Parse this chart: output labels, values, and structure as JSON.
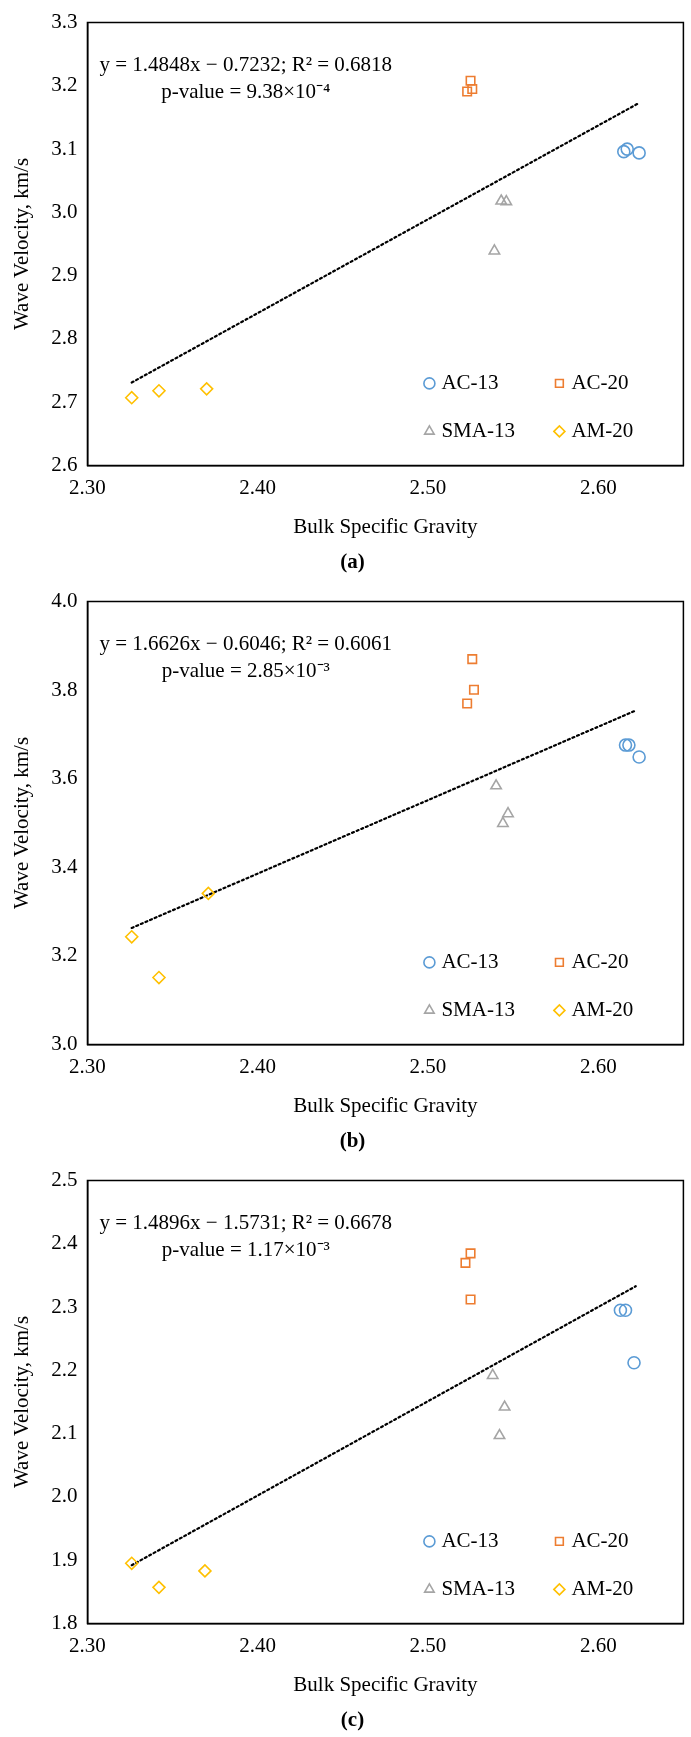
{
  "chart_data": [
    {
      "type": "scatter",
      "title": "(a)",
      "xlabel": "Bulk Specific Gravity",
      "ylabel": "Wave Velocity, km/s",
      "annotations": [
        "y = 1.4848x − 0.7232; R² = 0.6818",
        "p-value = 9.38×10⁻⁴"
      ],
      "xlim": [
        2.3,
        2.65
      ],
      "xticks": [
        {
          "value": 2.3,
          "label": "2.30"
        },
        {
          "value": 2.4,
          "label": "2.40"
        },
        {
          "value": 2.5,
          "label": "2.50"
        },
        {
          "value": 2.6,
          "label": "2.60"
        }
      ],
      "ylim": [
        2.6,
        3.3
      ],
      "yticks": [
        {
          "value": 2.6,
          "label": "2.6"
        },
        {
          "value": 2.7,
          "label": "2.7"
        },
        {
          "value": 2.8,
          "label": "2.8"
        },
        {
          "value": 2.9,
          "label": "2.9"
        },
        {
          "value": 3,
          "label": "3.0"
        },
        {
          "value": 3.1,
          "label": "3.1"
        },
        {
          "value": 3.2,
          "label": "3.2"
        },
        {
          "value": 3.3,
          "label": "3.3"
        }
      ],
      "grid": false,
      "legend": "bottom right",
      "series": [
        {
          "name": "AC-13",
          "color": "#5b9bd5",
          "marker": "circle",
          "x": [
            2.615,
            2.617,
            2.624
          ],
          "values": [
            3.096,
            3.1,
            3.094
          ]
        },
        {
          "name": "AC-20",
          "color": "#ed7d31",
          "marker": "square",
          "x": [
            2.523,
            2.525,
            2.526
          ],
          "values": [
            3.191,
            3.208,
            3.195
          ]
        },
        {
          "name": "SMA-13",
          "color": "#a5a5a5",
          "marker": "triangle",
          "x": [
            2.543,
            2.546,
            2.539
          ],
          "values": [
            3.018,
            3.017,
            2.939
          ]
        },
        {
          "name": "AM-20",
          "color": "#ffc000",
          "marker": "diamond",
          "x": [
            2.326,
            2.342,
            2.37
          ],
          "values": [
            2.707,
            2.718,
            2.721
          ]
        },
        {
          "type": "line",
          "color": "#000000",
          "marker": "none",
          "line_style": "dotted",
          "x": [
            2.326,
            2.624
          ],
          "values": [
            2.731,
            3.173
          ]
        }
      ]
    },
    {
      "type": "scatter",
      "title": "(b)",
      "xlabel": "Bulk Specific Gravity",
      "ylabel": "Wave Velocity, km/s",
      "annotations": [
        "y = 1.6626x − 0.6046; R² = 0.6061",
        "p-value = 2.85×10⁻³"
      ],
      "xlim": [
        2.3,
        2.65
      ],
      "xticks": [
        {
          "value": 2.3,
          "label": "2.30"
        },
        {
          "value": 2.4,
          "label": "2.40"
        },
        {
          "value": 2.5,
          "label": "2.50"
        },
        {
          "value": 2.6,
          "label": "2.60"
        }
      ],
      "ylim": [
        3,
        4
      ],
      "yticks": [
        {
          "value": 3,
          "label": "3.0"
        },
        {
          "value": 3.2,
          "label": "3.2"
        },
        {
          "value": 3.4,
          "label": "3.4"
        },
        {
          "value": 3.6,
          "label": "3.6"
        },
        {
          "value": 3.8,
          "label": "3.8"
        },
        {
          "value": 4,
          "label": "4.0"
        }
      ],
      "grid": false,
      "legend": "bottom right",
      "series": [
        {
          "name": "AC-13",
          "color": "#5b9bd5",
          "marker": "circle",
          "x": [
            2.616,
            2.618,
            2.624
          ],
          "values": [
            3.676,
            3.676,
            3.649
          ]
        },
        {
          "name": "AC-20",
          "color": "#ed7d31",
          "marker": "square",
          "x": [
            2.526,
            2.527,
            2.523
          ],
          "values": [
            3.87,
            3.801,
            3.77
          ]
        },
        {
          "name": "SMA-13",
          "color": "#a5a5a5",
          "marker": "triangle",
          "x": [
            2.54,
            2.547,
            2.544
          ],
          "values": [
            3.584,
            3.521,
            3.499
          ]
        },
        {
          "name": "AM-20",
          "color": "#ffc000",
          "marker": "diamond",
          "x": [
            2.326,
            2.342,
            2.371
          ],
          "values": [
            3.243,
            3.151,
            3.341
          ]
        },
        {
          "type": "line",
          "color": "#000000",
          "marker": "none",
          "line_style": "dotted",
          "x": [
            2.326,
            2.622
          ],
          "values": [
            3.263,
            3.754
          ]
        }
      ]
    },
    {
      "type": "scatter",
      "title": "(c)",
      "xlabel": "Bulk Specific Gravity",
      "ylabel": "Wave Velocity, km/s",
      "annotations": [
        "y = 1.4896x − 1.5731; R² = 0.6678",
        "p-value = 1.17×10⁻³"
      ],
      "xlim": [
        2.3,
        2.65
      ],
      "xticks": [
        {
          "value": 2.3,
          "label": "2.30"
        },
        {
          "value": 2.4,
          "label": "2.40"
        },
        {
          "value": 2.5,
          "label": "2.50"
        },
        {
          "value": 2.6,
          "label": "2.60"
        }
      ],
      "ylim": [
        1.8,
        2.5
      ],
      "yticks": [
        {
          "value": 1.8,
          "label": "1.8"
        },
        {
          "value": 1.9,
          "label": "1.9"
        },
        {
          "value": 2,
          "label": "2.0"
        },
        {
          "value": 2.1,
          "label": "2.1"
        },
        {
          "value": 2.2,
          "label": "2.2"
        },
        {
          "value": 2.3,
          "label": "2.3"
        },
        {
          "value": 2.4,
          "label": "2.4"
        },
        {
          "value": 2.5,
          "label": "2.5"
        }
      ],
      "grid": false,
      "legend": "bottom right",
      "series": [
        {
          "name": "AC-13",
          "color": "#5b9bd5",
          "marker": "circle",
          "x": [
            2.613,
            2.616,
            2.621
          ],
          "values": [
            2.295,
            2.295,
            2.212
          ]
        },
        {
          "name": "AC-20",
          "color": "#ed7d31",
          "marker": "square",
          "x": [
            2.522,
            2.525,
            2.525
          ],
          "values": [
            2.37,
            2.385,
            2.312
          ]
        },
        {
          "name": "SMA-13",
          "color": "#a5a5a5",
          "marker": "triangle",
          "x": [
            2.538,
            2.545,
            2.542
          ],
          "values": [
            2.192,
            2.142,
            2.097
          ]
        },
        {
          "name": "AM-20",
          "color": "#ffc000",
          "marker": "diamond",
          "x": [
            2.326,
            2.342,
            2.369
          ],
          "values": [
            1.895,
            1.857,
            1.883
          ]
        },
        {
          "type": "line",
          "color": "#000000",
          "marker": "none",
          "line_style": "dotted",
          "x": [
            2.326,
            2.622
          ],
          "values": [
            1.892,
            2.333
          ]
        }
      ]
    }
  ]
}
